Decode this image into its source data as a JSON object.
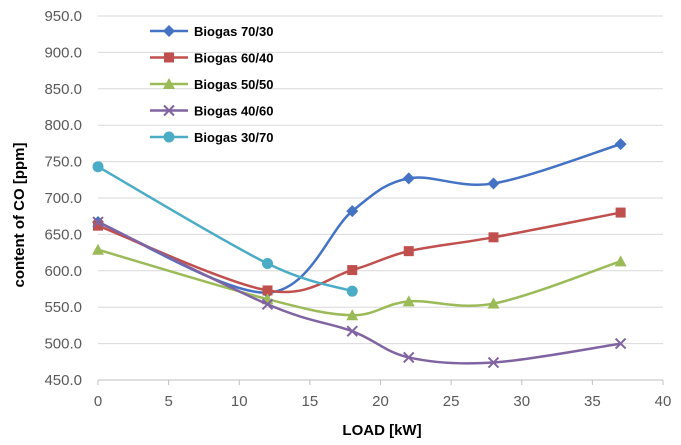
{
  "chart_data": {
    "type": "line",
    "title": "",
    "xlabel": "LOAD [kW]",
    "ylabel": "content of CO [ppm]",
    "xlim": [
      0,
      40
    ],
    "ylim": [
      450,
      950
    ],
    "x_ticks": [
      "0",
      "5",
      "10",
      "15",
      "20",
      "25",
      "30",
      "35",
      "40"
    ],
    "y_ticks": [
      "450.0",
      "500.0",
      "550.0",
      "600.0",
      "650.0",
      "700.0",
      "750.0",
      "800.0",
      "850.0",
      "900.0",
      "950.0"
    ],
    "grid": "horizontal",
    "legend_position": "top-left",
    "smooth": true,
    "series": [
      {
        "name": "Biogas 70/30",
        "color": "#4472c4",
        "marker": "diamond",
        "x": [
          0,
          12,
          18,
          22,
          28,
          37
        ],
        "y": [
          667,
          570,
          682,
          727,
          720,
          774
        ]
      },
      {
        "name": "Biogas 60/40",
        "color": "#c0504d",
        "marker": "square",
        "x": [
          0,
          12,
          18,
          22,
          28,
          37
        ],
        "y": [
          662,
          573,
          601,
          627,
          646,
          680
        ]
      },
      {
        "name": "Biogas 50/50",
        "color": "#9bbb59",
        "marker": "triangle",
        "x": [
          0,
          12,
          18,
          22,
          28,
          37
        ],
        "y": [
          629,
          561,
          539,
          558,
          555,
          613
        ]
      },
      {
        "name": "Biogas 40/60",
        "color": "#8064a2",
        "marker": "x",
        "x": [
          0,
          12,
          18,
          22,
          28,
          37
        ],
        "y": [
          667,
          554,
          517,
          481,
          474,
          500
        ]
      },
      {
        "name": "Biogas 30/70",
        "color": "#4bacc6",
        "marker": "circle",
        "x": [
          0,
          12,
          18
        ],
        "y": [
          743,
          610,
          572
        ]
      }
    ]
  }
}
